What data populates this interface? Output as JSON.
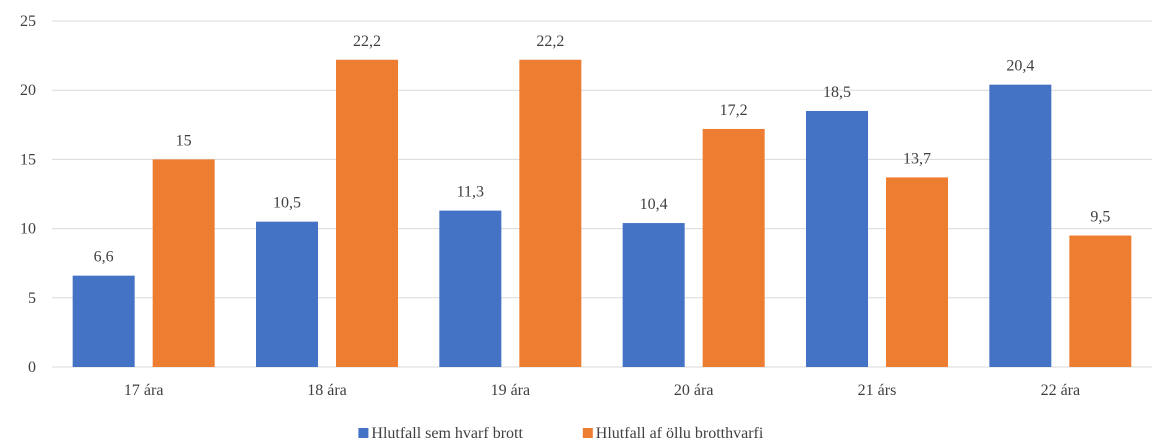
{
  "chart_data": {
    "type": "bar",
    "categories": [
      "17 ára",
      "18 ára",
      "19 ára",
      "20 ára",
      "21 árs",
      "22 ára"
    ],
    "series": [
      {
        "name": "Hlutfall sem hvarf brott",
        "values": [
          6.6,
          10.5,
          11.3,
          10.4,
          18.5,
          20.4
        ],
        "labels": [
          "6,6",
          "10,5",
          "11,3",
          "10,4",
          "18,5",
          "20,4"
        ],
        "color": "#4472c4"
      },
      {
        "name": "Hlutfall af öllu brotthvarfi",
        "values": [
          15,
          22.2,
          22.2,
          17.2,
          13.7,
          9.5
        ],
        "labels": [
          "15",
          "22,2",
          "22,2",
          "17,2",
          "13,7",
          "9,5"
        ],
        "color": "#ed7d31"
      }
    ],
    "yticks": [
      0,
      5,
      10,
      15,
      20,
      25
    ],
    "ylim": [
      0,
      25
    ],
    "grid": true,
    "legend_position": "bottom"
  }
}
